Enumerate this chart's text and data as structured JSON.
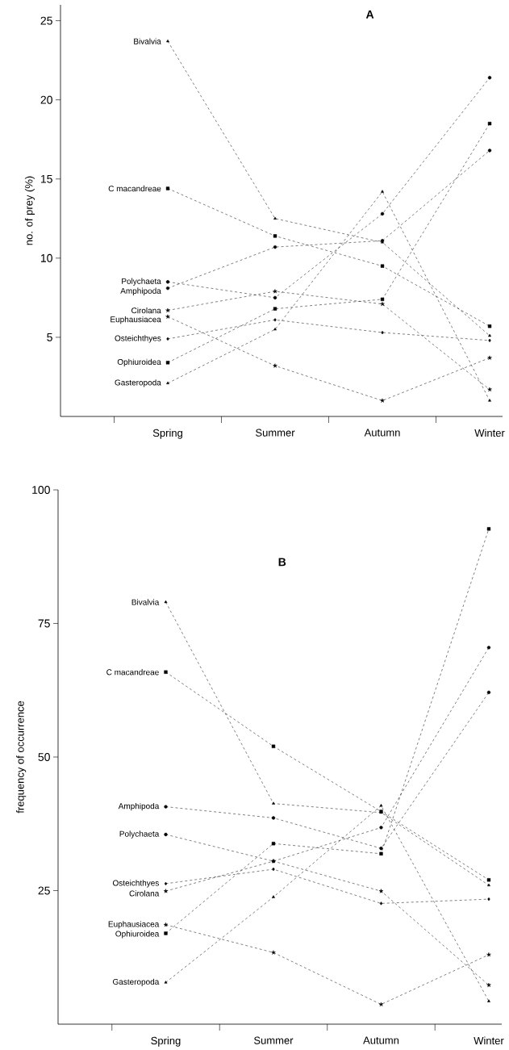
{
  "chart_data": [
    {
      "type": "line",
      "title": "A",
      "ylabel": "no. of prey (%)",
      "categories": [
        "Spring",
        "Summer",
        "Autumn",
        "Winter"
      ],
      "ylim": [
        0,
        26
      ],
      "yticks": [
        5,
        10,
        15,
        20,
        25
      ],
      "grid": false,
      "legend": false,
      "line_style": "dashed",
      "series": [
        {
          "name": "Bivalvia",
          "color": "#000000",
          "marker": "triangle",
          "values": [
            23.7,
            12.5,
            11.0,
            5.1
          ]
        },
        {
          "name": "C macandreae",
          "color": "#000000",
          "marker": "square",
          "values": [
            14.4,
            11.4,
            9.5,
            5.7
          ]
        },
        {
          "name": "Polychaeta",
          "color": "#000000",
          "marker": "circle",
          "values": [
            8.5,
            7.5,
            12.8,
            21.4
          ]
        },
        {
          "name": "Amphipoda",
          "color": "#000000",
          "marker": "circle",
          "values": [
            8.1,
            10.7,
            11.1,
            16.8
          ]
        },
        {
          "name": "Cirolana",
          "color": "#000000",
          "marker": "star",
          "values": [
            6.7,
            7.9,
            7.1,
            1.7
          ]
        },
        {
          "name": "Euphausiacea",
          "color": "#000000",
          "marker": "star",
          "values": [
            6.3,
            3.2,
            1.0,
            3.7
          ]
        },
        {
          "name": "Osteichthyes",
          "color": "#000000",
          "marker": "diamond",
          "values": [
            4.9,
            6.1,
            5.3,
            4.8
          ]
        },
        {
          "name": "Ophiuroidea",
          "color": "#000000",
          "marker": "square",
          "values": [
            3.4,
            6.8,
            7.4,
            18.5
          ]
        },
        {
          "name": "Gasteropoda",
          "color": "#000000",
          "marker": "triangle",
          "values": [
            2.1,
            5.5,
            14.2,
            1.0
          ]
        }
      ]
    },
    {
      "type": "line",
      "title": "B",
      "ylabel": "frequency of occurrence",
      "categories": [
        "Spring",
        "Summer",
        "Autumn",
        "Winter"
      ],
      "ylim": [
        0,
        100
      ],
      "yticks": [
        25,
        50,
        75,
        100
      ],
      "grid": false,
      "legend": false,
      "line_style": "dashed",
      "series": [
        {
          "name": "Bivalvia",
          "color": "#000000",
          "marker": "triangle",
          "values": [
            79,
            41.3,
            39.6,
            26
          ]
        },
        {
          "name": "C macandreae",
          "color": "#000000",
          "marker": "square",
          "values": [
            65.9,
            52,
            39.8,
            27
          ]
        },
        {
          "name": "Amphipoda",
          "color": "#000000",
          "marker": "circle",
          "values": [
            40.7,
            38.6,
            32.9,
            62.1
          ]
        },
        {
          "name": "Polychaeta",
          "color": "#000000",
          "marker": "circle",
          "values": [
            35.5,
            30.5,
            36.8,
            70.5
          ]
        },
        {
          "name": "Osteichthyes",
          "color": "#000000",
          "marker": "diamond",
          "values": [
            26.3,
            29.0,
            22.6,
            23.4
          ]
        },
        {
          "name": "Cirolana",
          "color": "#000000",
          "marker": "star",
          "values": [
            24.9,
            30.5,
            24.9,
            7.3
          ]
        },
        {
          "name": "Euphausiacea",
          "color": "#000000",
          "marker": "star",
          "values": [
            18.6,
            13.4,
            3.7,
            13.0
          ]
        },
        {
          "name": "Ophiuroidea",
          "color": "#000000",
          "marker": "square",
          "values": [
            17.0,
            33.8,
            31.9,
            92.7
          ]
        },
        {
          "name": "Gasteropoda",
          "color": "#000000",
          "marker": "triangle",
          "values": [
            7.8,
            23.8,
            40.9,
            4.3
          ]
        }
      ]
    }
  ]
}
